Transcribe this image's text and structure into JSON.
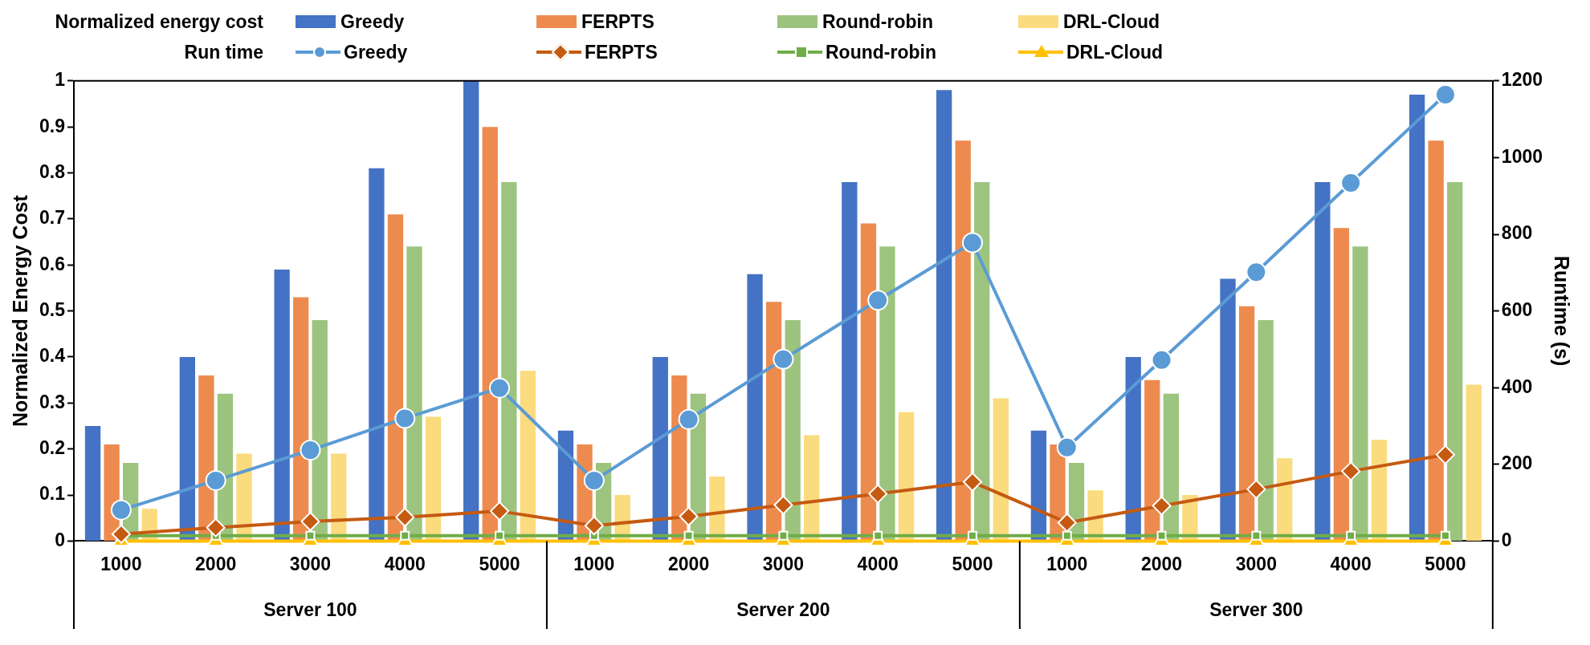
{
  "chart_data": {
    "type": "bar",
    "categories": [
      "1000",
      "2000",
      "3000",
      "4000",
      "5000",
      "1000",
      "2000",
      "3000",
      "4000",
      "5000",
      "1000",
      "2000",
      "3000",
      "4000",
      "5000"
    ],
    "ylabel": "Normalized Energy Cost",
    "y2label": "Runtime (s)",
    "ylim": [
      0,
      1
    ],
    "yticks": [
      0,
      0.1,
      0.2,
      0.3,
      0.4,
      0.5,
      0.6,
      0.7,
      0.8,
      0.9,
      1
    ],
    "y2lim": [
      0,
      1200
    ],
    "y2ticks": [
      0,
      200,
      400,
      600,
      800,
      1000,
      1200
    ],
    "grid": false,
    "legend": "top",
    "annotations": [
      "Normalized energy cost",
      "Run time",
      "Server 100",
      "Server 200",
      "Server 300"
    ],
    "series": [
      {
        "name": "Greedy",
        "color": "#4472c4",
        "values": [
          0.25,
          0.4,
          0.59,
          0.81,
          1.0,
          0.24,
          0.4,
          0.58,
          0.78,
          0.98,
          0.24,
          0.4,
          0.57,
          0.78,
          0.97
        ]
      },
      {
        "name": "FERPTS",
        "color": "#ed8b4f",
        "values": [
          0.21,
          0.36,
          0.53,
          0.71,
          0.9,
          0.21,
          0.36,
          0.52,
          0.69,
          0.87,
          0.21,
          0.35,
          0.51,
          0.68,
          0.87
        ]
      },
      {
        "name": "Round-robin",
        "color": "#9dc47f",
        "values": [
          0.17,
          0.32,
          0.48,
          0.64,
          0.78,
          0.17,
          0.32,
          0.48,
          0.64,
          0.78,
          0.17,
          0.32,
          0.48,
          0.64,
          0.78
        ]
      },
      {
        "name": "DRL-Cloud",
        "color": "#fadb7e",
        "values": [
          0.07,
          0.19,
          0.19,
          0.27,
          0.37,
          0.1,
          0.14,
          0.23,
          0.28,
          0.31,
          0.11,
          0.1,
          0.18,
          0.22,
          0.34
        ]
      },
      {
        "name": "Greedy",
        "type": "line",
        "axis": "y2",
        "marker": "circle",
        "color": "#5b9bd5",
        "values": [
          81,
          158,
          237,
          320,
          399,
          158,
          317,
          474,
          628,
          778,
          244,
          472,
          701,
          934,
          1164
        ]
      },
      {
        "name": "FERPTS",
        "type": "line",
        "axis": "y2",
        "marker": "diamond",
        "color": "#c55a11",
        "values": [
          18,
          35,
          51,
          62,
          78,
          40,
          64,
          94,
          123,
          154,
          48,
          92,
          135,
          182,
          225
        ]
      },
      {
        "name": "Round-robin",
        "type": "line",
        "axis": "y2",
        "marker": "square",
        "color": "#70ad47",
        "values": [
          14,
          14,
          14,
          14,
          14,
          14,
          14,
          14,
          14,
          14,
          14,
          14,
          14,
          14,
          14
        ]
      },
      {
        "name": "DRL-Cloud",
        "type": "line",
        "axis": "y2",
        "marker": "triangle",
        "color": "#ffc000",
        "values": [
          0,
          0,
          0,
          0,
          0,
          0,
          0,
          0,
          0,
          0,
          0,
          0,
          0,
          0,
          0
        ]
      }
    ]
  }
}
